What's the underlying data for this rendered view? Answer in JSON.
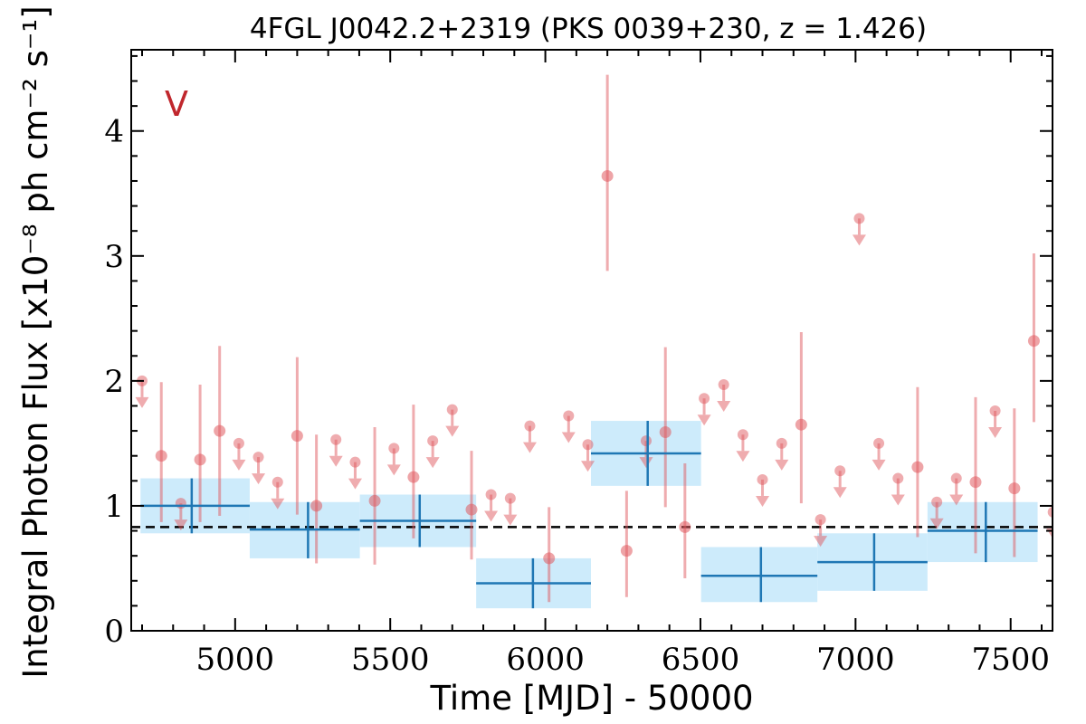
{
  "chart_data": {
    "type": "scatter",
    "title": "4FGL J0042.2+2319 (PKS 0039+230, z = 1.426)",
    "panel_label": "V",
    "xlabel": "Time [MJD] - 50000",
    "ylabel": "Integral Photon Flux [x10⁻⁸ ph cm⁻² s⁻¹]",
    "xlim": [
      4665,
      7635
    ],
    "ylim": [
      0,
      4.65
    ],
    "x_ticks": [
      5000,
      5500,
      6000,
      6500,
      7000,
      7500
    ],
    "y_ticks": [
      0,
      1,
      2,
      3,
      4
    ],
    "x_tick_labels": [
      "5000",
      "5500",
      "6000",
      "6500",
      "7000",
      "7500"
    ],
    "y_tick_labels": [
      "0",
      "1",
      "2",
      "3",
      "4"
    ],
    "mean_flux": 0.83,
    "colors": {
      "points": "#e05a5f",
      "bins_line": "#1f77b4",
      "bins_fill": "#cdebfb",
      "panel_label": "#c0272d",
      "mean_line": "#000000"
    },
    "series": [
      {
        "type": "binned_errorbar",
        "bins": [
          {
            "x0": 4695,
            "x1": 5047,
            "x": 4860,
            "y": 1.0,
            "ylo": 0.78,
            "yhi": 1.22
          },
          {
            "x0": 5047,
            "x1": 5402,
            "x": 5235,
            "y": 0.81,
            "ylo": 0.58,
            "yhi": 1.03
          },
          {
            "x0": 5402,
            "x1": 5777,
            "x": 5595,
            "y": 0.88,
            "ylo": 0.67,
            "yhi": 1.09
          },
          {
            "x0": 5777,
            "x1": 6147,
            "x": 5960,
            "y": 0.38,
            "ylo": 0.18,
            "yhi": 0.58
          },
          {
            "x0": 6147,
            "x1": 6502,
            "x": 6330,
            "y": 1.42,
            "ylo": 1.16,
            "yhi": 1.68
          },
          {
            "x0": 6502,
            "x1": 6877,
            "x": 6695,
            "y": 0.44,
            "ylo": 0.23,
            "yhi": 0.67
          },
          {
            "x0": 6877,
            "x1": 7232,
            "x": 7060,
            "y": 0.55,
            "ylo": 0.32,
            "yhi": 0.78
          },
          {
            "x0": 7232,
            "x1": 7587,
            "x": 7420,
            "y": 0.8,
            "ylo": 0.55,
            "yhi": 1.03
          }
        ]
      },
      {
        "type": "points",
        "points": [
          {
            "x": 4700,
            "y": 2.0,
            "ul": true
          },
          {
            "x": 4762,
            "y": 1.4,
            "ylo": 0.87,
            "yhi": 1.99
          },
          {
            "x": 4825,
            "y": 1.02,
            "ul": true
          },
          {
            "x": 4887,
            "y": 1.37,
            "ylo": 0.87,
            "yhi": 1.97
          },
          {
            "x": 4950,
            "y": 1.6,
            "ylo": 0.92,
            "yhi": 2.28
          },
          {
            "x": 5012,
            "y": 1.5,
            "ul": true
          },
          {
            "x": 5075,
            "y": 1.39,
            "ul": true
          },
          {
            "x": 5137,
            "y": 1.19,
            "ul": true
          },
          {
            "x": 5200,
            "y": 1.56,
            "ylo": 0.93,
            "yhi": 2.19
          },
          {
            "x": 5262,
            "y": 1.0,
            "ylo": 0.54,
            "yhi": 1.57
          },
          {
            "x": 5325,
            "y": 1.53,
            "ul": true
          },
          {
            "x": 5387,
            "y": 1.35,
            "ul": true
          },
          {
            "x": 5450,
            "y": 1.04,
            "ylo": 0.53,
            "yhi": 1.63
          },
          {
            "x": 5512,
            "y": 1.46,
            "ul": true
          },
          {
            "x": 5575,
            "y": 1.23,
            "ylo": 0.74,
            "yhi": 1.81
          },
          {
            "x": 5637,
            "y": 1.52,
            "ul": true
          },
          {
            "x": 5700,
            "y": 1.77,
            "ul": true
          },
          {
            "x": 5762,
            "y": 0.97,
            "ylo": 0.57,
            "yhi": 1.44
          },
          {
            "x": 5825,
            "y": 1.09,
            "ul": true
          },
          {
            "x": 5887,
            "y": 1.06,
            "ul": true
          },
          {
            "x": 5950,
            "y": 1.64,
            "ul": true
          },
          {
            "x": 6012,
            "y": 0.58,
            "ylo": 0.23,
            "yhi": 0.99
          },
          {
            "x": 6075,
            "y": 1.72,
            "ul": true
          },
          {
            "x": 6137,
            "y": 1.49,
            "ul": true
          },
          {
            "x": 6200,
            "y": 3.64,
            "ylo": 2.88,
            "yhi": 4.45
          },
          {
            "x": 6262,
            "y": 0.64,
            "ylo": 0.27,
            "yhi": 1.12
          },
          {
            "x": 6325,
            "y": 1.52,
            "ul": true
          },
          {
            "x": 6387,
            "y": 1.59,
            "ylo": 0.99,
            "yhi": 2.27
          },
          {
            "x": 6450,
            "y": 0.83,
            "ylo": 0.42,
            "yhi": 1.34
          },
          {
            "x": 6512,
            "y": 1.86,
            "ul": true
          },
          {
            "x": 6575,
            "y": 1.97,
            "ul": true
          },
          {
            "x": 6637,
            "y": 1.57,
            "ul": true
          },
          {
            "x": 6700,
            "y": 1.21,
            "ul": true
          },
          {
            "x": 6762,
            "y": 1.5,
            "ul": true
          },
          {
            "x": 6825,
            "y": 1.65,
            "ylo": 1.02,
            "yhi": 2.39
          },
          {
            "x": 6887,
            "y": 0.89,
            "ul": true
          },
          {
            "x": 6950,
            "y": 1.28,
            "ul": true
          },
          {
            "x": 7012,
            "y": 3.3,
            "ul": true
          },
          {
            "x": 7075,
            "y": 1.5,
            "ul": true
          },
          {
            "x": 7137,
            "y": 1.22,
            "ul": true
          },
          {
            "x": 7200,
            "y": 1.31,
            "ylo": 0.75,
            "yhi": 1.95
          },
          {
            "x": 7262,
            "y": 1.03,
            "ul": true
          },
          {
            "x": 7325,
            "y": 1.22,
            "ul": true
          },
          {
            "x": 7387,
            "y": 1.19,
            "ylo": 0.62,
            "yhi": 1.87
          },
          {
            "x": 7450,
            "y": 1.76,
            "ul": true
          },
          {
            "x": 7512,
            "y": 1.14,
            "ylo": 0.59,
            "yhi": 1.78
          },
          {
            "x": 7575,
            "y": 2.32,
            "ylo": 1.67,
            "yhi": 3.02
          },
          {
            "x": 7637,
            "y": 0.95,
            "ul": true
          }
        ]
      }
    ]
  }
}
